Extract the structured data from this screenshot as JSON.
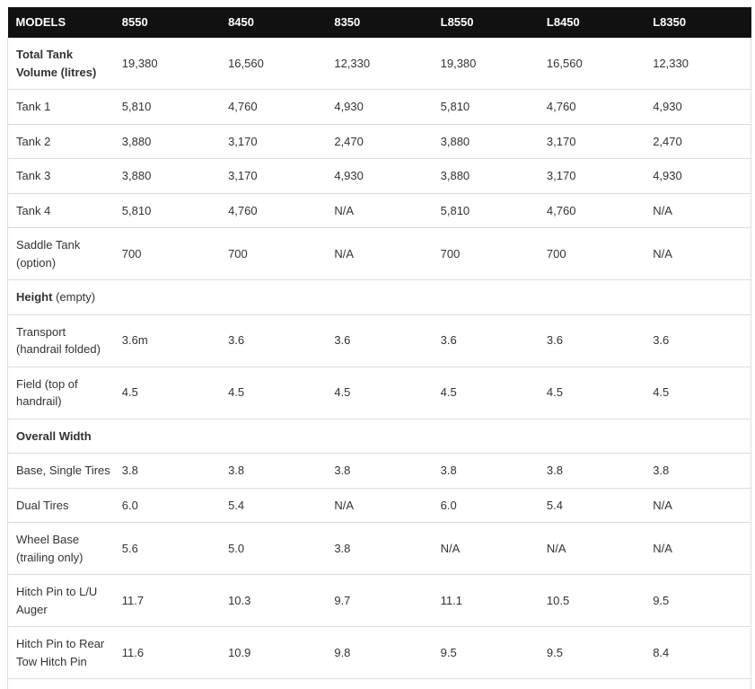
{
  "table": {
    "header": [
      "MODELS",
      "8550",
      "8450",
      "8350",
      "L8550",
      "L8450",
      "L8350"
    ],
    "rows": [
      {
        "type": "data",
        "bold_label": true,
        "label": "Total Tank Volume (litres)",
        "label_suffix": "",
        "values": [
          "19,380",
          "16,560",
          "12,330",
          "19,380",
          "16,560",
          "12,330"
        ]
      },
      {
        "type": "data",
        "label": "Tank 1",
        "label_suffix": "",
        "values": [
          "5,810",
          "4,760",
          "4,930",
          "5,810",
          "4,760",
          "4,930"
        ]
      },
      {
        "type": "data",
        "label": "Tank 2",
        "label_suffix": "",
        "values": [
          "3,880",
          "3,170",
          "2,470",
          "3,880",
          "3,170",
          "2,470"
        ]
      },
      {
        "type": "data",
        "label": "Tank 3",
        "label_suffix": "",
        "values": [
          "3,880",
          "3,170",
          "4,930",
          "3,880",
          "3,170",
          "4,930"
        ]
      },
      {
        "type": "data",
        "label": "Tank 4",
        "label_suffix": "",
        "values": [
          "5,810",
          "4,760",
          "N/A",
          "5,810",
          "4,760",
          "N/A"
        ]
      },
      {
        "type": "data",
        "label": "Saddle Tank (option)",
        "label_suffix": "",
        "values": [
          "700",
          "700",
          "N/A",
          "700",
          "700",
          "N/A"
        ]
      },
      {
        "type": "section",
        "label": "Height",
        "label_suffix": " (empty)",
        "values": [
          "",
          "",
          "",
          "",
          "",
          ""
        ]
      },
      {
        "type": "data",
        "label": "Transport (handrail folded)",
        "label_suffix": "",
        "values": [
          "3.6m",
          "3.6",
          "3.6",
          "3.6",
          "3.6",
          "3.6"
        ]
      },
      {
        "type": "data",
        "label": "Field (top of handrail)",
        "label_suffix": "",
        "values": [
          "4.5",
          "4.5",
          "4.5",
          "4.5",
          "4.5",
          "4.5"
        ]
      },
      {
        "type": "section",
        "label": "Overall Width",
        "label_suffix": "",
        "values": [
          "",
          "",
          "",
          "",
          "",
          ""
        ]
      },
      {
        "type": "data",
        "label": "Base, Single Tires",
        "label_suffix": "",
        "values": [
          "3.8",
          "3.8",
          "3.8",
          "3.8",
          "3.8",
          "3.8"
        ]
      },
      {
        "type": "data",
        "label": "Dual Tires",
        "label_suffix": "",
        "values": [
          "6.0",
          "5.4",
          "N/A",
          "6.0",
          "5.4",
          "N/A"
        ]
      },
      {
        "type": "data",
        "label": "Wheel Base (trailing only)",
        "label_suffix": "",
        "values": [
          "5.6",
          "5.0",
          "3.8",
          "N/A",
          "N/A",
          "N/A"
        ]
      },
      {
        "type": "data",
        "label": "Hitch Pin to L/U Auger",
        "label_suffix": "",
        "values": [
          "11.7",
          "10.3",
          "9.7",
          "11.1",
          "10.5",
          "9.5"
        ]
      },
      {
        "type": "data",
        "label": "Hitch Pin to Rear Tow Hitch Pin",
        "label_suffix": "",
        "values": [
          "11.6",
          "10.9",
          "9.8",
          "9.5",
          "9.5",
          "8.4"
        ]
      },
      {
        "type": "partial",
        "label": "",
        "label_suffix": "",
        "values": [
          "",
          "",
          "",
          "",
          "",
          ""
        ]
      }
    ]
  },
  "colors": {
    "header_background": "#111111",
    "header_text": "#ffffff",
    "body_text": "#333333",
    "border": "#dddddd",
    "page_background": "#ffffff"
  }
}
